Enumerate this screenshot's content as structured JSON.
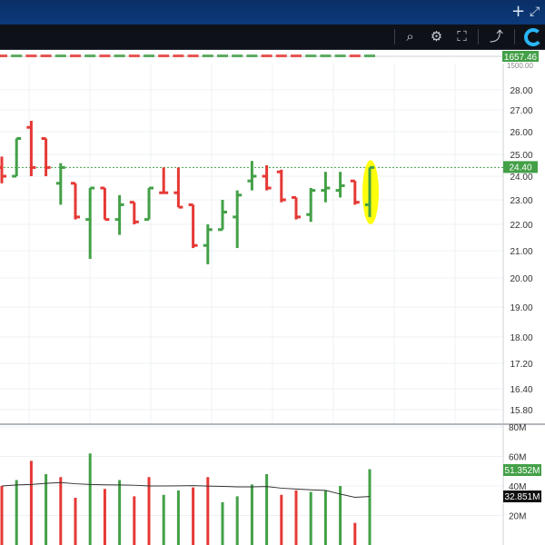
{
  "window": {
    "controls": {
      "add_icon": "plus-icon",
      "expand_icon": "expand-icon"
    }
  },
  "toolbar": {
    "tools": [
      {
        "name": "search-zoom-icon",
        "glyph": "⌕"
      },
      {
        "name": "gear-icon",
        "glyph": "⚙"
      },
      {
        "name": "fullscreen-icon",
        "glyph": "⛶"
      },
      {
        "name": "share-icon",
        "glyph": "⤴"
      }
    ],
    "logo_icon": "brand-logo-icon"
  },
  "indicator_strip": {
    "value_label": "1657.46",
    "partial_label": "1500.00"
  },
  "price_pane": {
    "current_price_label": "24.40",
    "current_price": 24.4
  },
  "volume_pane": {
    "last_volume_label": "51.352M",
    "average_volume_label": "32.851M"
  },
  "colors": {
    "up": "#43a047",
    "down": "#e53935",
    "highlight": "#ffff00",
    "price_line": "#43a047",
    "avg_line": "#333333"
  },
  "chart_data": [
    {
      "type": "ohlc-bar",
      "y_ticks": [
        "28.00",
        "27.00",
        "26.00",
        "25.00",
        "24.00",
        "23.00",
        "22.00",
        "21.00",
        "20.00",
        "19.00",
        "18.00",
        "17.20",
        "16.40",
        "15.80"
      ],
      "bars": [
        {
          "o": 24.4,
          "h": 24.9,
          "l": 23.7,
          "c": 24.0,
          "dir": "down"
        },
        {
          "o": 24.0,
          "h": 25.7,
          "l": 24.0,
          "c": 25.7,
          "dir": "up"
        },
        {
          "o": 26.2,
          "h": 26.5,
          "l": 24.0,
          "c": 24.4,
          "dir": "down"
        },
        {
          "o": 25.7,
          "h": 25.7,
          "l": 24.0,
          "c": 24.4,
          "dir": "down"
        },
        {
          "o": 23.7,
          "h": 24.6,
          "l": 22.8,
          "c": 24.4,
          "dir": "up"
        },
        {
          "o": 23.7,
          "h": 23.7,
          "l": 22.2,
          "c": 22.3,
          "dir": "down"
        },
        {
          "o": 22.2,
          "h": 23.5,
          "l": 20.7,
          "c": 23.5,
          "dir": "up"
        },
        {
          "o": 23.5,
          "h": 23.5,
          "l": 22.2,
          "c": 22.2,
          "dir": "down"
        },
        {
          "o": 22.2,
          "h": 23.2,
          "l": 21.6,
          "c": 22.8,
          "dir": "up"
        },
        {
          "o": 22.9,
          "h": 22.9,
          "l": 22.0,
          "c": 22.1,
          "dir": "down"
        },
        {
          "o": 22.2,
          "h": 23.5,
          "l": 22.2,
          "c": 23.5,
          "dir": "up"
        },
        {
          "o": 23.3,
          "h": 24.4,
          "l": 23.3,
          "c": 23.3,
          "dir": "down"
        },
        {
          "o": 23.3,
          "h": 24.4,
          "l": 22.7,
          "c": 22.7,
          "dir": "down"
        },
        {
          "o": 22.8,
          "h": 22.8,
          "l": 21.1,
          "c": 21.2,
          "dir": "down"
        },
        {
          "o": 21.2,
          "h": 22.0,
          "l": 20.5,
          "c": 21.8,
          "dir": "up"
        },
        {
          "o": 21.8,
          "h": 23.0,
          "l": 21.8,
          "c": 22.5,
          "dir": "up"
        },
        {
          "o": 22.3,
          "h": 23.4,
          "l": 21.1,
          "c": 23.2,
          "dir": "up"
        },
        {
          "o": 23.8,
          "h": 24.7,
          "l": 23.4,
          "c": 24.0,
          "dir": "up"
        },
        {
          "o": 24.0,
          "h": 24.5,
          "l": 23.4,
          "c": 23.5,
          "dir": "down"
        },
        {
          "o": 24.2,
          "h": 24.3,
          "l": 22.9,
          "c": 23.0,
          "dir": "down"
        },
        {
          "o": 23.1,
          "h": 23.1,
          "l": 22.2,
          "c": 22.3,
          "dir": "down"
        },
        {
          "o": 22.4,
          "h": 23.5,
          "l": 22.1,
          "c": 23.4,
          "dir": "up"
        },
        {
          "o": 23.4,
          "h": 24.2,
          "l": 22.9,
          "c": 23.5,
          "dir": "up"
        },
        {
          "o": 23.4,
          "h": 24.2,
          "l": 23.1,
          "c": 23.6,
          "dir": "up"
        },
        {
          "o": 23.8,
          "h": 23.8,
          "l": 22.8,
          "c": 22.9,
          "dir": "down"
        },
        {
          "o": 22.8,
          "h": 24.4,
          "l": 22.3,
          "c": 24.4,
          "dir": "up"
        }
      ],
      "highlighted_index": 25
    },
    {
      "type": "bar",
      "y_ticks": [
        "80M",
        "60M",
        "40M",
        "20M"
      ],
      "ylim": [
        0,
        80
      ],
      "values": [
        40,
        44,
        57,
        48,
        46,
        32,
        62,
        38,
        44,
        33,
        46,
        34,
        37,
        39,
        46,
        29,
        33,
        41,
        48,
        34,
        37,
        36,
        37,
        40,
        15,
        51.352
      ],
      "dirs": [
        "down",
        "up",
        "down",
        "up",
        "down",
        "down",
        "up",
        "down",
        "up",
        "down",
        "down",
        "up",
        "up",
        "down",
        "down",
        "up",
        "up",
        "up",
        "up",
        "down",
        "down",
        "up",
        "up",
        "up",
        "down",
        "up"
      ],
      "moving_average": [
        40,
        40.7,
        41,
        41.8,
        42.3,
        41.5,
        41,
        40.8,
        40.7,
        40.5,
        40,
        40,
        40.1,
        40.2,
        39.9,
        39.7,
        39.4,
        39.4,
        39.6,
        38.5,
        37.9,
        37.4,
        37.0,
        34.5,
        32.3,
        32.851
      ]
    }
  ]
}
